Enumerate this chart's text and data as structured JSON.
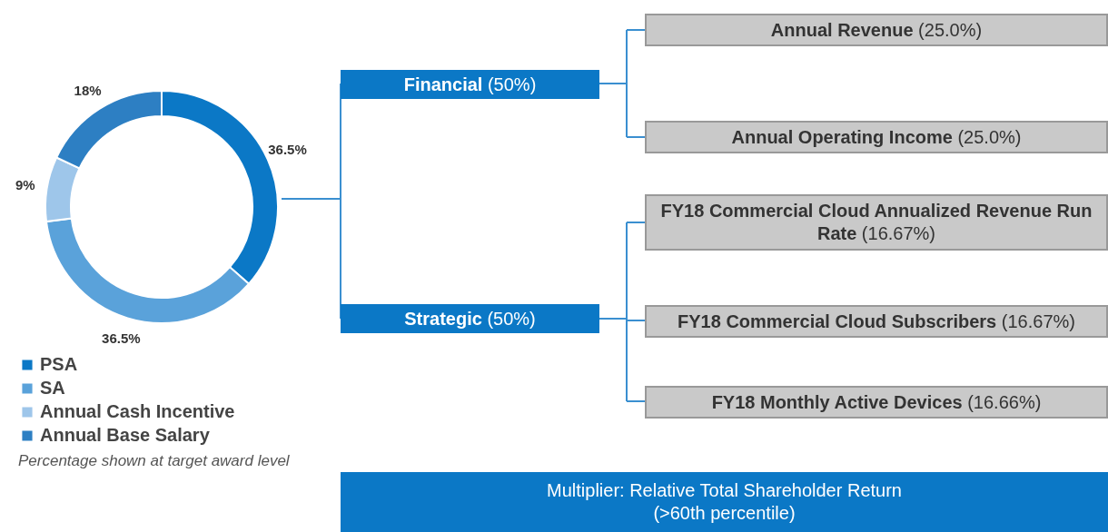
{
  "chart_data": [
    {
      "type": "donut",
      "categories": [
        "PSA",
        "SA",
        "Annual Cash Incentive",
        "Annual Base Salary"
      ],
      "values": [
        36.5,
        36.5,
        9,
        18
      ],
      "colors": [
        "#0b78c6",
        "#5aa2da",
        "#9ec6ea",
        "#2d7fc3"
      ],
      "value_labels": [
        "36.5%",
        "36.5%",
        "9%",
        "18%"
      ],
      "legend": "bottom left",
      "annotations": [
        "Percentage shown at target award level"
      ]
    },
    {
      "type": "other",
      "annotations": [
        "Financial (50%)",
        "Strategic (50%)",
        "Annual Revenue (25.0%)",
        "Annual Operating Income (25.0%)",
        "FY18 Commercial Cloud Annualized Revenue Run Rate (16.67%)",
        "FY18 Commercial Cloud Subscribers (16.67%)",
        "FY18 Monthly Active Devices (16.66%)",
        "Multiplier: Relative Total Shareholder Return (>60th percentile)"
      ]
    }
  ]
}
